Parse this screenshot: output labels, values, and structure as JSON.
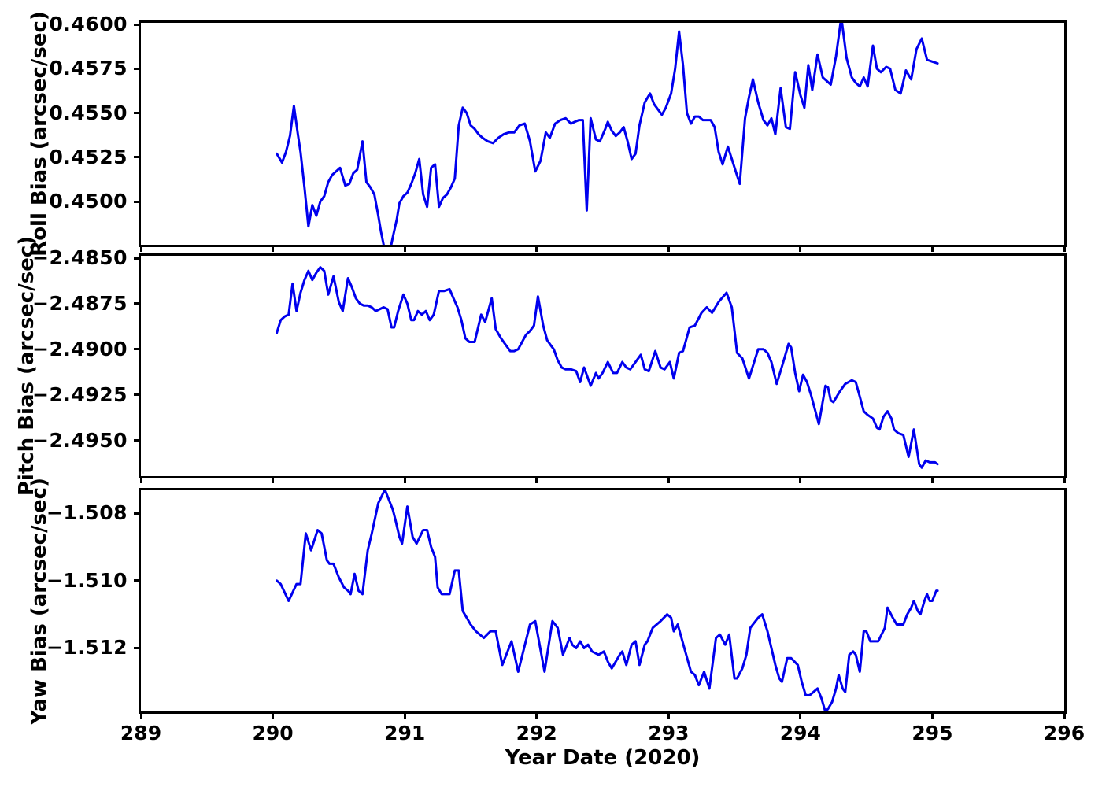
{
  "figure": {
    "background": "#ffffff",
    "line_color": "#0000ee",
    "axis_color": "#000000"
  },
  "x_axis": {
    "label": "Year Date (2020)",
    "xlim": [
      289,
      296
    ],
    "ticks": [
      {
        "v": 289,
        "label": "289"
      },
      {
        "v": 290,
        "label": "290"
      },
      {
        "v": 291,
        "label": "291"
      },
      {
        "v": 292,
        "label": "292"
      },
      {
        "v": 293,
        "label": "293"
      },
      {
        "v": 294,
        "label": "294"
      },
      {
        "v": 295,
        "label": "295"
      },
      {
        "v": 296,
        "label": "296"
      }
    ]
  },
  "chart_data": [
    {
      "type": "line",
      "name": "roll-bias",
      "ylabel": "Roll Bias (arcsec/sec)",
      "ylim": [
        0.44756,
        0.46009
      ],
      "yticks": [
        {
          "v": 0.46,
          "label": "0.4600"
        },
        {
          "v": 0.4575,
          "label": "0.4575"
        },
        {
          "v": 0.455,
          "label": "0.4550"
        },
        {
          "v": 0.4525,
          "label": "0.4525"
        },
        {
          "v": 0.45,
          "label": "0.4500"
        }
      ],
      "x": [
        290.03,
        290.07,
        290.1,
        290.13,
        290.16,
        290.19,
        290.21,
        290.24,
        290.27,
        290.3,
        290.33,
        290.36,
        290.39,
        290.42,
        290.45,
        290.48,
        290.51,
        290.55,
        290.58,
        290.61,
        290.64,
        290.68,
        290.71,
        290.74,
        290.77,
        290.8,
        290.82,
        290.85,
        290.88,
        290.91,
        290.94,
        290.96,
        290.99,
        291.02,
        291.05,
        291.08,
        291.11,
        291.14,
        291.17,
        291.2,
        291.23,
        291.26,
        291.29,
        291.32,
        291.35,
        291.38,
        291.41,
        291.44,
        291.47,
        291.5,
        291.53,
        291.56,
        291.59,
        291.63,
        291.67,
        291.71,
        291.75,
        291.79,
        291.83,
        291.87,
        291.91,
        291.95,
        291.99,
        292.03,
        292.07,
        292.1,
        292.14,
        292.18,
        292.22,
        292.26,
        292.29,
        292.32,
        292.35,
        292.38,
        292.41,
        292.45,
        292.48,
        292.52,
        292.54,
        292.57,
        292.6,
        292.63,
        292.66,
        292.69,
        292.72,
        292.75,
        292.78,
        292.82,
        292.86,
        292.89,
        292.92,
        292.95,
        292.98,
        293.02,
        293.05,
        293.08,
        293.11,
        293.14,
        293.17,
        293.2,
        293.23,
        293.26,
        293.29,
        293.32,
        293.35,
        293.38,
        293.41,
        293.45,
        293.48,
        293.51,
        293.54,
        293.58,
        293.61,
        293.64,
        293.68,
        293.72,
        293.75,
        293.78,
        293.81,
        293.85,
        293.89,
        293.92,
        293.96,
        294.0,
        294.03,
        294.06,
        294.09,
        294.13,
        294.17,
        294.2,
        294.23,
        294.27,
        294.31,
        294.35,
        294.39,
        294.42,
        294.45,
        294.48,
        294.51,
        294.55,
        294.58,
        294.61,
        294.65,
        294.68,
        294.72,
        294.76,
        294.8,
        294.84,
        294.88,
        294.92,
        294.96,
        295.0,
        295.04
      ],
      "y": [
        0.4527,
        0.4522,
        0.4528,
        0.4537,
        0.4554,
        0.4538,
        0.4528,
        0.4508,
        0.4486,
        0.4498,
        0.4492,
        0.45,
        0.4503,
        0.4511,
        0.4515,
        0.4517,
        0.4519,
        0.4509,
        0.451,
        0.4516,
        0.4518,
        0.4534,
        0.4511,
        0.4508,
        0.4504,
        0.4492,
        0.4483,
        0.4472,
        0.4469,
        0.448,
        0.449,
        0.4499,
        0.4503,
        0.4505,
        0.451,
        0.4516,
        0.4524,
        0.4504,
        0.4497,
        0.4519,
        0.4521,
        0.4497,
        0.4502,
        0.4504,
        0.4508,
        0.4513,
        0.4543,
        0.4553,
        0.455,
        0.4543,
        0.4541,
        0.4538,
        0.4536,
        0.4534,
        0.4533,
        0.4536,
        0.4538,
        0.4539,
        0.4539,
        0.4543,
        0.4544,
        0.4534,
        0.4517,
        0.4523,
        0.4539,
        0.4536,
        0.4544,
        0.4546,
        0.4547,
        0.4544,
        0.4545,
        0.4546,
        0.4546,
        0.4495,
        0.4547,
        0.4535,
        0.4534,
        0.4541,
        0.4545,
        0.454,
        0.4537,
        0.4539,
        0.4542,
        0.4534,
        0.4524,
        0.4527,
        0.4543,
        0.4556,
        0.4561,
        0.4555,
        0.4552,
        0.4549,
        0.4553,
        0.4561,
        0.4575,
        0.4596,
        0.4577,
        0.455,
        0.4544,
        0.4548,
        0.4548,
        0.4546,
        0.4546,
        0.4546,
        0.4542,
        0.4528,
        0.4521,
        0.4531,
        0.4524,
        0.4517,
        0.451,
        0.4547,
        0.4559,
        0.4569,
        0.4556,
        0.4546,
        0.4543,
        0.4547,
        0.4538,
        0.4564,
        0.4542,
        0.4541,
        0.4573,
        0.456,
        0.4553,
        0.4577,
        0.4563,
        0.4583,
        0.457,
        0.4568,
        0.4566,
        0.4582,
        0.4604,
        0.4581,
        0.457,
        0.4567,
        0.4565,
        0.457,
        0.4565,
        0.4588,
        0.4575,
        0.4573,
        0.4576,
        0.4575,
        0.4563,
        0.4561,
        0.4574,
        0.4569,
        0.4586,
        0.4592,
        0.458,
        0.4579,
        0.4578
      ]
    },
    {
      "type": "line",
      "name": "pitch-bias",
      "ylabel": "Pitch Bias (arcsec/sec)",
      "ylim": [
        -2.49696,
        -2.48487
      ],
      "yticks": [
        {
          "v": -2.485,
          "label": "−2.4850"
        },
        {
          "v": -2.4875,
          "label": "−2.4875"
        },
        {
          "v": -2.49,
          "label": "−2.4900"
        },
        {
          "v": -2.4925,
          "label": "−2.4925"
        },
        {
          "v": -2.495,
          "label": "−2.4950"
        }
      ],
      "x": [
        290.03,
        290.06,
        290.09,
        290.12,
        290.15,
        290.18,
        290.21,
        290.24,
        290.27,
        290.3,
        290.33,
        290.36,
        290.39,
        290.42,
        290.46,
        290.5,
        290.53,
        290.57,
        290.6,
        290.63,
        290.66,
        290.69,
        290.72,
        290.75,
        290.78,
        290.81,
        290.84,
        290.87,
        290.9,
        290.92,
        290.95,
        290.99,
        291.02,
        291.05,
        291.07,
        291.1,
        291.13,
        291.16,
        291.19,
        291.22,
        291.26,
        291.3,
        291.34,
        291.37,
        291.4,
        291.43,
        291.46,
        291.49,
        291.53,
        291.58,
        291.61,
        291.66,
        291.69,
        291.73,
        291.76,
        291.8,
        291.83,
        291.86,
        291.89,
        291.92,
        291.95,
        291.98,
        292.01,
        292.05,
        292.08,
        292.11,
        292.13,
        292.16,
        292.19,
        292.22,
        292.26,
        292.3,
        292.33,
        292.36,
        292.41,
        292.45,
        292.47,
        292.5,
        292.54,
        292.58,
        292.61,
        292.65,
        292.68,
        292.71,
        292.75,
        292.79,
        292.82,
        292.85,
        292.9,
        292.94,
        292.97,
        293.01,
        293.04,
        293.08,
        293.11,
        293.16,
        293.2,
        293.25,
        293.29,
        293.33,
        293.38,
        293.44,
        293.48,
        293.52,
        293.56,
        293.61,
        293.68,
        293.72,
        293.75,
        293.78,
        293.82,
        293.87,
        293.91,
        293.93,
        293.96,
        293.99,
        294.02,
        294.05,
        294.08,
        294.14,
        294.19,
        294.21,
        294.23,
        294.25,
        294.3,
        294.34,
        294.39,
        294.42,
        294.45,
        294.48,
        294.51,
        294.55,
        294.58,
        294.6,
        294.63,
        294.66,
        294.69,
        294.71,
        294.74,
        294.78,
        294.82,
        294.86,
        294.9,
        294.92,
        294.95,
        294.98,
        295.02,
        295.04
      ],
      "y": [
        -2.4891,
        -2.4884,
        -2.4882,
        -2.4881,
        -2.4864,
        -2.4879,
        -2.4869,
        -2.4862,
        -2.4857,
        -2.4862,
        -2.4858,
        -2.4855,
        -2.4857,
        -2.487,
        -2.486,
        -2.4874,
        -2.4879,
        -2.4861,
        -2.4866,
        -2.4872,
        -2.4875,
        -2.4876,
        -2.4876,
        -2.4877,
        -2.4879,
        -2.4878,
        -2.4877,
        -2.4878,
        -2.4888,
        -2.4888,
        -2.4879,
        -2.487,
        -2.4875,
        -2.4884,
        -2.4884,
        -2.4879,
        -2.4881,
        -2.4879,
        -2.4884,
        -2.4881,
        -2.4868,
        -2.4868,
        -2.4867,
        -2.4872,
        -2.4877,
        -2.4884,
        -2.4894,
        -2.4896,
        -2.4896,
        -2.4881,
        -2.4885,
        -2.4872,
        -2.4889,
        -2.4894,
        -2.4897,
        -2.4901,
        -2.4901,
        -2.49,
        -2.4896,
        -2.4892,
        -2.489,
        -2.4887,
        -2.4871,
        -2.4887,
        -2.4895,
        -2.4898,
        -2.49,
        -2.4906,
        -2.491,
        -2.4911,
        -2.4911,
        -2.4912,
        -2.4918,
        -2.491,
        -2.492,
        -2.4913,
        -2.4916,
        -2.4913,
        -2.4907,
        -2.4913,
        -2.4913,
        -2.4907,
        -2.491,
        -2.4911,
        -2.4907,
        -2.4903,
        -2.4911,
        -2.4912,
        -2.4901,
        -2.491,
        -2.4911,
        -2.4907,
        -2.4916,
        -2.4902,
        -2.4901,
        -2.4888,
        -2.4887,
        -2.488,
        -2.4877,
        -2.488,
        -2.4874,
        -2.4869,
        -2.4877,
        -2.4902,
        -2.4905,
        -2.4916,
        -2.49,
        -2.49,
        -2.4902,
        -2.4907,
        -2.4919,
        -2.4907,
        -2.4897,
        -2.4899,
        -2.4913,
        -2.4923,
        -2.4914,
        -2.4918,
        -2.4925,
        -2.4941,
        -2.492,
        -2.4921,
        -2.4928,
        -2.4929,
        -2.4923,
        -2.4919,
        -2.4917,
        -2.4918,
        -2.4926,
        -2.4934,
        -2.4936,
        -2.4938,
        -2.4943,
        -2.4944,
        -2.4937,
        -2.4934,
        -2.4938,
        -2.4944,
        -2.4946,
        -2.4947,
        -2.4959,
        -2.4944,
        -2.4963,
        -2.4965,
        -2.4961,
        -2.4962,
        -2.4962,
        -2.4963
      ]
    },
    {
      "type": "line",
      "name": "yaw-bias",
      "ylabel": "Yaw Bias (arcsec/sec)",
      "ylim": [
        -1.51388,
        -1.50732
      ],
      "yticks": [
        {
          "v": -1.508,
          "label": "−1.508"
        },
        {
          "v": -1.51,
          "label": "−1.510"
        },
        {
          "v": -1.512,
          "label": "−1.512"
        }
      ],
      "x": [
        290.03,
        290.06,
        290.12,
        290.18,
        290.21,
        290.25,
        290.29,
        290.34,
        290.37,
        290.41,
        290.43,
        290.46,
        290.5,
        290.54,
        290.57,
        290.59,
        290.62,
        290.65,
        290.68,
        290.72,
        290.75,
        290.8,
        290.85,
        290.91,
        290.93,
        290.96,
        290.98,
        291.02,
        291.06,
        291.09,
        291.14,
        291.17,
        291.2,
        291.23,
        291.25,
        291.28,
        291.31,
        291.34,
        291.38,
        291.41,
        291.44,
        291.47,
        291.5,
        291.54,
        291.6,
        291.65,
        291.69,
        291.74,
        291.81,
        291.86,
        291.95,
        291.99,
        292.06,
        292.12,
        292.14,
        292.16,
        292.2,
        292.25,
        292.27,
        292.3,
        292.33,
        292.36,
        292.39,
        292.42,
        292.47,
        292.51,
        292.54,
        292.57,
        292.63,
        292.65,
        292.68,
        292.72,
        292.75,
        292.78,
        292.82,
        292.84,
        292.88,
        292.91,
        292.94,
        292.99,
        293.02,
        293.04,
        293.07,
        293.12,
        293.17,
        293.2,
        293.23,
        293.27,
        293.31,
        293.36,
        293.39,
        293.43,
        293.46,
        293.5,
        293.52,
        293.56,
        293.59,
        293.62,
        293.64,
        293.68,
        293.71,
        293.75,
        293.78,
        293.81,
        293.84,
        293.86,
        293.9,
        293.93,
        293.98,
        294.01,
        294.04,
        294.07,
        294.1,
        294.13,
        294.16,
        294.19,
        294.21,
        294.24,
        294.27,
        294.29,
        294.32,
        294.34,
        294.37,
        294.4,
        294.42,
        294.45,
        294.48,
        294.5,
        294.53,
        294.56,
        294.59,
        294.64,
        294.66,
        294.7,
        294.73,
        294.75,
        294.78,
        294.81,
        294.84,
        294.86,
        294.89,
        294.91,
        294.94,
        294.96,
        294.98,
        295.0,
        295.03,
        295.04
      ],
      "y": [
        -1.51,
        -1.5101,
        -1.5106,
        -1.5101,
        -1.5101,
        -1.5086,
        -1.5091,
        -1.5085,
        -1.5086,
        -1.5094,
        -1.5095,
        -1.5095,
        -1.5099,
        -1.5102,
        -1.5103,
        -1.5104,
        -1.5098,
        -1.5103,
        -1.5104,
        -1.5091,
        -1.5086,
        -1.5077,
        -1.5073,
        -1.5079,
        -1.5082,
        -1.5087,
        -1.5089,
        -1.5078,
        -1.5087,
        -1.5089,
        -1.5085,
        -1.5085,
        -1.509,
        -1.5093,
        -1.5102,
        -1.5104,
        -1.5104,
        -1.5104,
        -1.5097,
        -1.5097,
        -1.5109,
        -1.5111,
        -1.5113,
        -1.5115,
        -1.5117,
        -1.5115,
        -1.5115,
        -1.5125,
        -1.5118,
        -1.5127,
        -1.5113,
        -1.5112,
        -1.5127,
        -1.5112,
        -1.5113,
        -1.5114,
        -1.5122,
        -1.5117,
        -1.5119,
        -1.512,
        -1.5118,
        -1.512,
        -1.5119,
        -1.5121,
        -1.5122,
        -1.5121,
        -1.5124,
        -1.5126,
        -1.5122,
        -1.5121,
        -1.5125,
        -1.5119,
        -1.5118,
        -1.5125,
        -1.5119,
        -1.5118,
        -1.5114,
        -1.5113,
        -1.5112,
        -1.511,
        -1.5111,
        -1.5115,
        -1.5113,
        -1.512,
        -1.5127,
        -1.5128,
        -1.5131,
        -1.5127,
        -1.5132,
        -1.5117,
        -1.5116,
        -1.5119,
        -1.5116,
        -1.5129,
        -1.5129,
        -1.5126,
        -1.5122,
        -1.5114,
        -1.5113,
        -1.5111,
        -1.511,
        -1.5115,
        -1.512,
        -1.5125,
        -1.5129,
        -1.513,
        -1.5123,
        -1.5123,
        -1.5125,
        -1.513,
        -1.5134,
        -1.5134,
        -1.5133,
        -1.5132,
        -1.5135,
        -1.5139,
        -1.5138,
        -1.5136,
        -1.5132,
        -1.5128,
        -1.5132,
        -1.5133,
        -1.5122,
        -1.5121,
        -1.5122,
        -1.5127,
        -1.5115,
        -1.5115,
        -1.5118,
        -1.5118,
        -1.5118,
        -1.5114,
        -1.5108,
        -1.5111,
        -1.5113,
        -1.5113,
        -1.5113,
        -1.511,
        -1.5108,
        -1.5106,
        -1.5109,
        -1.511,
        -1.5106,
        -1.5104,
        -1.5106,
        -1.5106,
        -1.5103,
        -1.5103
      ]
    }
  ]
}
